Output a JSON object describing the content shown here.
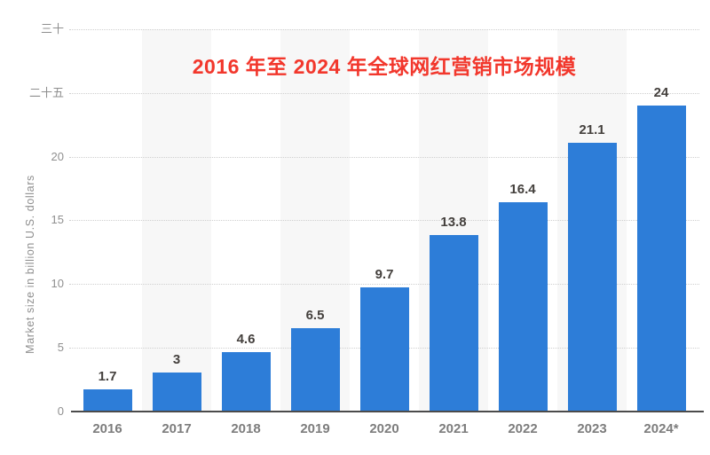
{
  "title": {
    "text": "2016 年至 2024 年全球网红营销市场规模",
    "color": "#f2372c"
  },
  "chart_data": {
    "type": "bar",
    "title": "2016 年至 2024 年全球网红营销市场规模",
    "categories": [
      "2016",
      "2017",
      "2018",
      "2019",
      "2020",
      "2021",
      "2022",
      "2023",
      "2024*"
    ],
    "values": [
      1.7,
      3,
      4.6,
      6.5,
      9.7,
      13.8,
      16.4,
      21.1,
      24
    ],
    "value_labels": [
      "1.7",
      "3",
      "4.6",
      "6.5",
      "9.7",
      "13.8",
      "16.4",
      "21.1",
      "24"
    ],
    "xlabel": "",
    "ylabel": "Market size in billion U.S. dollars",
    "ylim": [
      0,
      30
    ],
    "ytick_values": [
      0,
      5,
      10,
      15,
      20,
      25,
      30
    ],
    "ytick_labels": [
      "0",
      "5",
      "10",
      "15",
      "20",
      "二十五",
      "三十"
    ],
    "grid": "horizontal-dotted",
    "legend": "none",
    "colors": {
      "bar": "#2d7dd8",
      "stripe": "#f7f7f7",
      "gridline": "#cfcfcf",
      "axis_line": "#4b4b4b",
      "ytick_label": "#8f8f8f",
      "xtick_label": "#7d7d7d",
      "value_label": "#44403d",
      "y_axis_title": "#8f8f8f",
      "background": "#ffffff"
    }
  }
}
